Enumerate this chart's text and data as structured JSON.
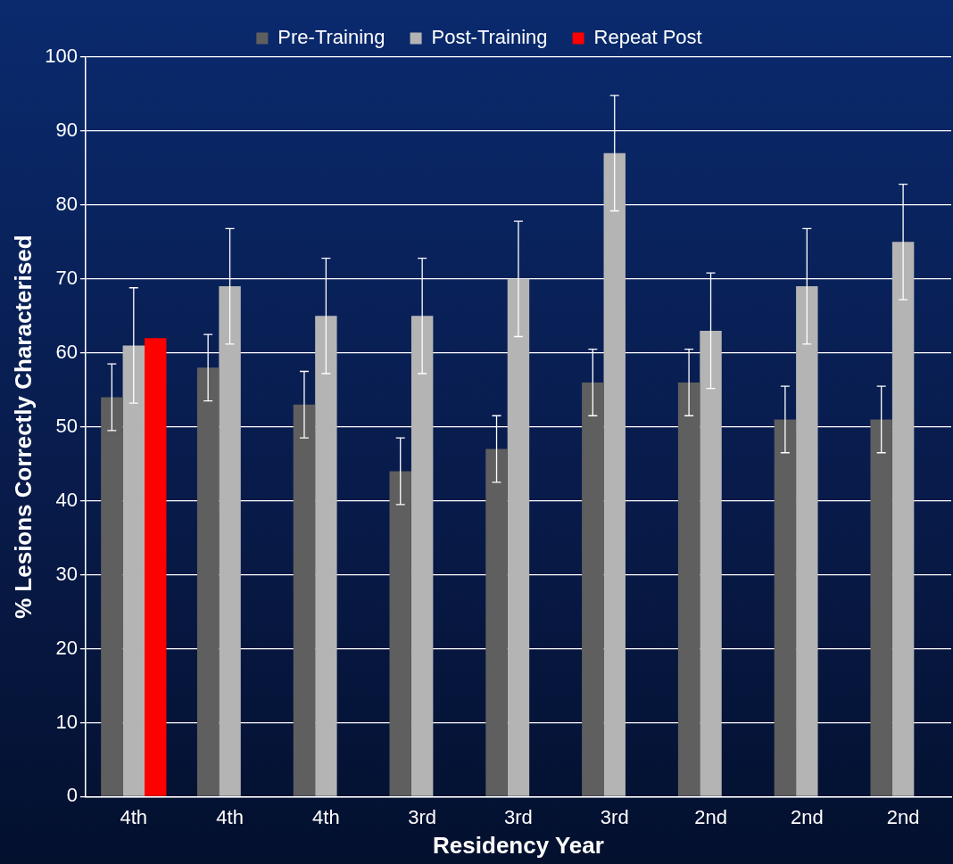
{
  "chart_data": {
    "type": "bar",
    "xlabel": "Residency Year",
    "ylabel": "% Lesions Correctly Characterised",
    "categories": [
      "4th",
      "4th",
      "4th",
      "3rd",
      "3rd",
      "3rd",
      "2nd",
      "2nd",
      "2nd"
    ],
    "series": [
      {
        "name": "Pre-Training",
        "color": "#5f5f5f",
        "values": [
          54,
          58,
          53,
          44,
          47,
          56,
          56,
          51,
          51
        ],
        "errors": [
          4.5,
          4.5,
          4.5,
          4.5,
          4.5,
          4.5,
          4.5,
          4.5,
          4.5
        ]
      },
      {
        "name": "Post-Training",
        "color": "#b4b4b4",
        "values": [
          61,
          69,
          65,
          65,
          70,
          87,
          63,
          69,
          75
        ],
        "errors": [
          7.8,
          7.8,
          7.8,
          7.8,
          7.8,
          7.8,
          7.8,
          7.8,
          7.8
        ]
      },
      {
        "name": "Repeat Post",
        "color": "#ff0000",
        "values": [
          62,
          null,
          null,
          null,
          null,
          null,
          null,
          null,
          null
        ]
      }
    ],
    "ylim": [
      0,
      100
    ],
    "yticks": [
      0,
      10,
      20,
      30,
      40,
      50,
      60,
      70,
      80,
      90,
      100
    ],
    "grid": "y",
    "legend": "top"
  }
}
